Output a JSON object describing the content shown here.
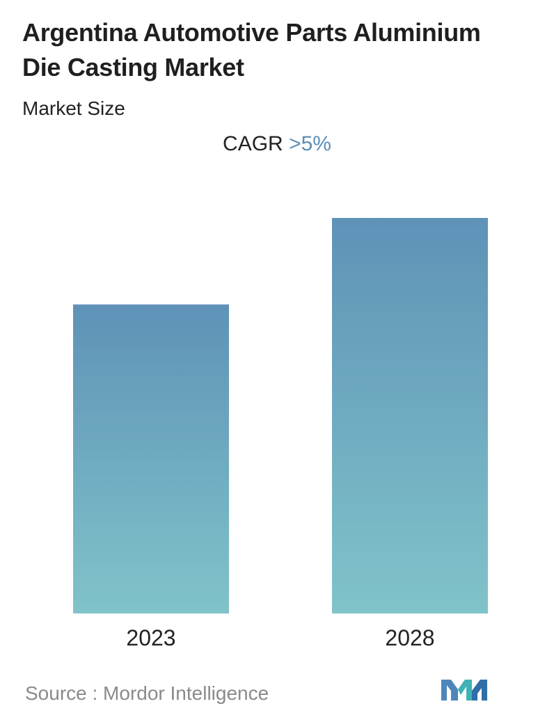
{
  "header": {
    "title": "Argentina Automotive Parts Aluminium Die Casting Market",
    "subtitle": "Market Size",
    "cagr_label": "CAGR",
    "cagr_value": ">5%"
  },
  "chart_data": {
    "type": "bar",
    "categories": [
      "2023",
      "2028"
    ],
    "values": [
      1.0,
      1.28
    ],
    "ylim": [
      0,
      1.28
    ],
    "grid": false,
    "legend": "none",
    "colors": {
      "bar_top": "#5f92b7",
      "bar_bottom": "#80c3c9"
    }
  },
  "footer": {
    "source": "Source :  Mordor Intelligence",
    "logo_icon": "mordor-intelligence-logo-icon"
  }
}
